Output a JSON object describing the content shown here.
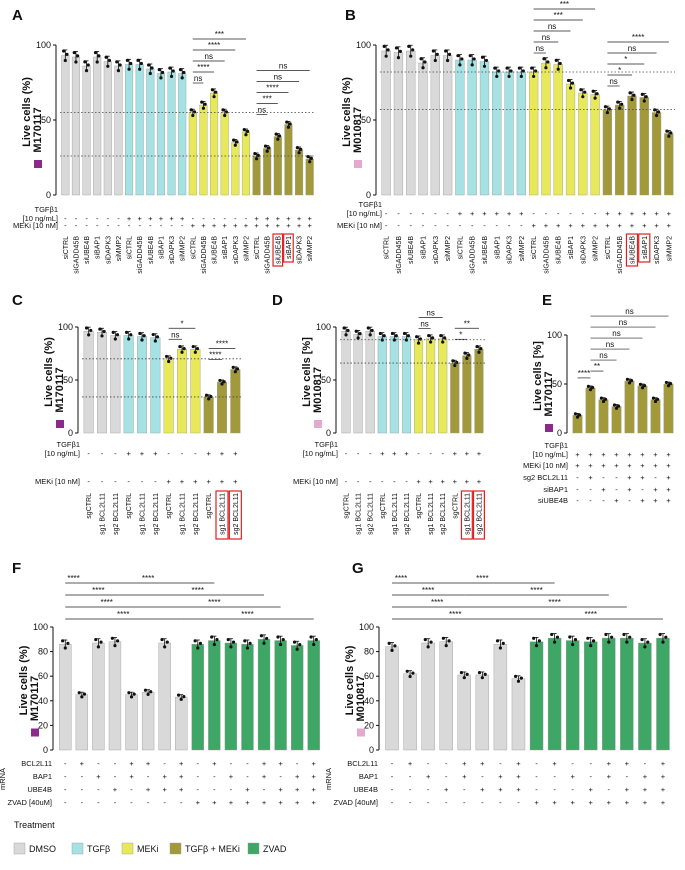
{
  "colors": {
    "DMSO": "#d9d9d9",
    "TGFb": "#a6e1e4",
    "MEKi": "#e7e85a",
    "TGFb_MEKi": "#a29a3a",
    "ZVAD": "#3fa765",
    "M170117": "#8c2a8c",
    "M010817": "#e4a9cf",
    "highlight": "#e02020"
  },
  "legend": {
    "title": "Treatment",
    "items": [
      {
        "label": "DMSO",
        "color": "#d9d9d9"
      },
      {
        "label": "TGFβ",
        "color": "#a6e1e4"
      },
      {
        "label": "MEKi",
        "color": "#e7e85a"
      },
      {
        "label": "TGFβ + MEKi",
        "color": "#a29a3a"
      },
      {
        "label": "ZVAD",
        "color": "#3fa765"
      }
    ]
  },
  "chart_data": [
    {
      "id": "A",
      "type": "bar",
      "panel_label": "A",
      "ylabel": "Live cells (%)",
      "cell_line": "M170117",
      "ylim": [
        0,
        100
      ],
      "yticks": [
        0,
        50,
        100
      ],
      "categories": [
        "siCTRL",
        "siGADD45B",
        "siUBE4B",
        "siBAP1",
        "siDAPK3",
        "siMMP2",
        "siCTRL",
        "siGADD45B",
        "siUBE4B",
        "siBAP1",
        "siDAPK3",
        "siMMP2",
        "siCTRL",
        "siGADD45B",
        "siUBE4B",
        "siBAP1",
        "siDAPK3",
        "siMMP2",
        "siCTRL",
        "siGADD45B",
        "siUBE4B",
        "siBAP1",
        "siDAPK3",
        "siMMP2"
      ],
      "values": [
        93,
        92,
        86,
        92,
        89,
        86,
        87,
        87,
        84,
        81,
        82,
        81,
        55,
        60,
        68,
        55,
        35,
        42,
        26,
        31,
        39,
        47,
        30,
        24
      ],
      "groups": [
        "DMSO",
        "DMSO",
        "DMSO",
        "DMSO",
        "DMSO",
        "DMSO",
        "TGFb",
        "TGFb",
        "TGFb",
        "TGFb",
        "TGFb",
        "TGFb",
        "MEKi",
        "MEKi",
        "MEKi",
        "MEKi",
        "MEKi",
        "MEKi",
        "TGFb_MEKi",
        "TGFb_MEKi",
        "TGFb_MEKi",
        "TGFb_MEKi",
        "TGFb_MEKi",
        "TGFb_MEKi"
      ],
      "highlight": [
        20,
        21
      ],
      "rows": [
        {
          "label": "TGFβ1",
          "label2": "[10 ng/mL]",
          "values": [
            "-",
            "-",
            "-",
            "-",
            "-",
            "-",
            "+",
            "+",
            "+",
            "+",
            "+",
            "+",
            "-",
            "-",
            "-",
            "-",
            "-",
            "-",
            "+",
            "+",
            "+",
            "+",
            "+",
            "+"
          ]
        },
        {
          "label": "MEKi [10 nM]",
          "values": [
            "-",
            "-",
            "-",
            "-",
            "-",
            "-",
            "-",
            "-",
            "-",
            "-",
            "-",
            "-",
            "+",
            "+",
            "+",
            "+",
            "+",
            "+",
            "+",
            "+",
            "+",
            "+",
            "+",
            "+"
          ]
        }
      ],
      "refs": [
        55,
        26
      ],
      "sig": [
        [
          "ns",
          12,
          13
        ],
        [
          "****",
          12,
          14
        ],
        [
          "ns",
          12,
          15
        ],
        [
          "****",
          12,
          16
        ],
        [
          "***",
          12,
          17
        ],
        [
          "ns",
          18,
          19
        ],
        [
          "***",
          18,
          20
        ],
        [
          "****",
          18,
          21
        ],
        [
          "ns",
          18,
          22
        ],
        [
          "ns",
          18,
          23
        ]
      ]
    },
    {
      "id": "B",
      "type": "bar",
      "panel_label": "B",
      "ylabel": "Live cells (%)",
      "cell_line": "M010817",
      "ylim": [
        0,
        100
      ],
      "yticks": [
        0,
        50,
        100
      ],
      "categories": [
        "siCTRL",
        "siGADD45B",
        "siUBE4B",
        "siBAP1",
        "siDAPK3",
        "siMMP2",
        "siCTRL",
        "siGADD45B",
        "siUBE4B",
        "siBAP1",
        "siDAPK3",
        "siMMP2",
        "siCTRL",
        "siGADD45B",
        "siUBE4B",
        "siBAP1",
        "siDAPK3",
        "siMMP2",
        "siCTRL",
        "siGADD45B",
        "siUBE4B",
        "siBAP1",
        "siDAPK3",
        "siMMP2"
      ],
      "values": [
        96,
        95,
        96,
        88,
        93,
        93,
        90,
        90,
        89,
        82,
        82,
        82,
        82,
        88,
        87,
        74,
        68,
        67,
        57,
        60,
        66,
        65,
        55,
        41
      ],
      "groups": [
        "DMSO",
        "DMSO",
        "DMSO",
        "DMSO",
        "DMSO",
        "DMSO",
        "TGFb",
        "TGFb",
        "TGFb",
        "TGFb",
        "TGFb",
        "TGFb",
        "MEKi",
        "MEKi",
        "MEKi",
        "MEKi",
        "MEKi",
        "MEKi",
        "TGFb_MEKi",
        "TGFb_MEKi",
        "TGFb_MEKi",
        "TGFb_MEKi",
        "TGFb_MEKi",
        "TGFb_MEKi"
      ],
      "highlight": [
        20,
        21
      ],
      "rows": [
        {
          "label": "TGFβ1",
          "label2": "[10 ng/mL]",
          "values": [
            "-",
            "-",
            "-",
            "-",
            "-",
            "-",
            "+",
            "+",
            "+",
            "+",
            "+",
            "+",
            "-",
            "-",
            "-",
            "-",
            "-",
            "-",
            "+",
            "+",
            "+",
            "+",
            "+",
            "+"
          ]
        },
        {
          "label": "MEKi [10 nM]",
          "values": [
            "-",
            "-",
            "-",
            "-",
            "-",
            "-",
            "-",
            "-",
            "-",
            "-",
            "-",
            "-",
            "+",
            "+",
            "+",
            "+",
            "+",
            "+",
            "+",
            "+",
            "+",
            "+",
            "+",
            "+"
          ]
        }
      ],
      "refs": [
        82,
        57
      ],
      "sig": [
        [
          "ns",
          12,
          13
        ],
        [
          "ns",
          12,
          14
        ],
        [
          "ns",
          12,
          15
        ],
        [
          "***",
          12,
          16
        ],
        [
          "***",
          12,
          17
        ],
        [
          "ns",
          18,
          19
        ],
        [
          "*",
          18,
          20
        ],
        [
          "*",
          18,
          21
        ],
        [
          "ns",
          18,
          22
        ],
        [
          "****",
          18,
          23
        ]
      ]
    },
    {
      "id": "C",
      "type": "bar",
      "panel_label": "C",
      "ylabel": "Live cells (%)",
      "cell_line": "M170117",
      "ylim": [
        0,
        100
      ],
      "yticks": [
        0,
        50,
        100
      ],
      "categories": [
        "sgCTRL",
        "sg1 BCL2L11",
        "sg2 BCL2L11",
        "sgCTRL",
        "sg1 BCL2L11",
        "sg2 BCL2L11",
        "sgCTRL",
        "sg1 BCL2L11",
        "sg2 BCL2L11",
        "sgCTRL",
        "sg1 BCL2L11",
        "sg2 BCL2L11"
      ],
      "values": [
        96,
        95,
        92,
        92,
        91,
        90,
        70,
        79,
        79,
        34,
        48,
        60
      ],
      "groups": [
        "DMSO",
        "DMSO",
        "DMSO",
        "TGFb",
        "TGFb",
        "TGFb",
        "MEKi",
        "MEKi",
        "MEKi",
        "TGFb_MEKi",
        "TGFb_MEKi",
        "TGFb_MEKi"
      ],
      "highlight": [
        10,
        11
      ],
      "rows": [
        {
          "label": "TGFβ1",
          "label2": "[10 ng/mL]",
          "values": [
            "-",
            "-",
            "-",
            "+",
            "+",
            "+",
            "-",
            "-",
            "-",
            "+",
            "+",
            "+"
          ]
        },
        {
          "label": "MEKi [10 nM]",
          "values": [
            "-",
            "-",
            "-",
            "-",
            "-",
            "-",
            "+",
            "+",
            "+",
            "+",
            "+",
            "+"
          ]
        }
      ],
      "refs": [
        70,
        34
      ],
      "sig": [
        [
          "ns",
          6,
          7
        ],
        [
          "*",
          6,
          8
        ],
        [
          "****",
          9,
          10
        ],
        [
          "****",
          9,
          11
        ]
      ]
    },
    {
      "id": "D",
      "type": "bar",
      "panel_label": "D",
      "ylabel": "Live cells [%]",
      "cell_line": "M010817",
      "ylim": [
        0,
        100
      ],
      "yticks": [
        0,
        50,
        100
      ],
      "categories": [
        "sgCTRL",
        "sg1 BCL2L11",
        "sg2 BCL2L11",
        "sgCTRL",
        "sg1 BCL2L11",
        "sg2 BCL2L11",
        "sgCTRL",
        "sg1 BCL2L11",
        "sg2 BCL2L11",
        "sgCTRL",
        "sg1 BCL2L11",
        "sg2 BCL2L11"
      ],
      "values": [
        96,
        93,
        96,
        91,
        91,
        91,
        88,
        89,
        89,
        66,
        73,
        79
      ],
      "groups": [
        "DMSO",
        "DMSO",
        "DMSO",
        "TGFb",
        "TGFb",
        "TGFb",
        "MEKi",
        "MEKi",
        "MEKi",
        "TGFb_MEKi",
        "TGFb_MEKi",
        "TGFb_MEKi"
      ],
      "highlight": [
        10,
        11
      ],
      "rows": [
        {
          "label": "TGFβ1",
          "label2": "[10 ng/mL]",
          "values": [
            "-",
            "-",
            "-",
            "+",
            "+",
            "+",
            "-",
            "-",
            "-",
            "+",
            "+",
            "+"
          ]
        },
        {
          "label": "MEKi [10 nM]",
          "values": [
            "-",
            "-",
            "-",
            "-",
            "-",
            "-",
            "+",
            "+",
            "+",
            "+",
            "+",
            "+"
          ]
        }
      ],
      "refs": [
        88,
        66
      ],
      "sig": [
        [
          "ns",
          6,
          7
        ],
        [
          "ns",
          6,
          8
        ],
        [
          "*",
          9,
          10
        ],
        [
          "**",
          9,
          11
        ]
      ]
    },
    {
      "id": "E",
      "type": "bar",
      "panel_label": "E",
      "ylabel": "Live cells [%]",
      "cell_line": "M170117",
      "ylim": [
        0,
        100
      ],
      "yticks": [
        0,
        50,
        100
      ],
      "categories": [
        "",
        "",
        "",
        "",
        "",
        "",
        "",
        ""
      ],
      "values": [
        18,
        46,
        34,
        27,
        53,
        48,
        34,
        50
      ],
      "groups": [
        "TGFb_MEKi",
        "TGFb_MEKi",
        "TGFb_MEKi",
        "TGFb_MEKi",
        "TGFb_MEKi",
        "TGFb_MEKi",
        "TGFb_MEKi",
        "TGFb_MEKi"
      ],
      "highlight": [],
      "rows": [
        {
          "label": "TGFβ1",
          "label2": "[10 ng/mL]",
          "values": [
            "+",
            "+",
            "+",
            "+",
            "+",
            "+",
            "+",
            "+"
          ]
        },
        {
          "label": "MEKi [10 nM]",
          "values": [
            "+",
            "+",
            "+",
            "+",
            "+",
            "+",
            "+",
            "+"
          ]
        },
        {
          "label": "sg2 BCL2L11",
          "values": [
            "-",
            "+",
            "-",
            "-",
            "+",
            "+",
            "-",
            "+"
          ]
        },
        {
          "label": "siBAP1",
          "values": [
            "-",
            "-",
            "+",
            "-",
            "+",
            "-",
            "+",
            "+"
          ]
        },
        {
          "label": "siUBE4B",
          "values": [
            "-",
            "-",
            "-",
            "+",
            "-",
            "+",
            "+",
            "+"
          ]
        }
      ],
      "refs": [],
      "sig": [
        [
          "****",
          0,
          1
        ],
        [
          "**",
          1,
          2
        ],
        [
          "ns",
          1,
          3
        ],
        [
          "ns",
          1,
          4
        ],
        [
          "ns",
          1,
          5
        ],
        [
          "ns",
          1,
          6
        ],
        [
          "ns",
          1,
          7
        ]
      ]
    },
    {
      "id": "F",
      "type": "bar",
      "panel_label": "F",
      "ylabel": "Live cells (%)",
      "cell_line": "M170117",
      "ylim": [
        0,
        100
      ],
      "yticks": [
        0,
        20,
        40,
        60,
        80,
        100
      ],
      "categories": [
        "",
        "",
        "",
        "",
        "",
        "",
        "",
        "",
        "",
        "",
        "",
        "",
        "",
        "",
        "",
        ""
      ],
      "values": [
        86,
        45,
        87,
        88,
        45,
        47,
        87,
        43,
        86,
        89,
        87,
        86,
        90,
        89,
        85,
        89
      ],
      "groups": [
        "DMSO",
        "DMSO",
        "DMSO",
        "DMSO",
        "DMSO",
        "DMSO",
        "DMSO",
        "DMSO",
        "ZVAD",
        "ZVAD",
        "ZVAD",
        "ZVAD",
        "ZVAD",
        "ZVAD",
        "ZVAD",
        "ZVAD"
      ],
      "highlight": [],
      "rows": [
        {
          "label": "BCL2L11",
          "values": [
            "-",
            "+",
            "-",
            "-",
            "+",
            "+",
            "-",
            "+",
            "-",
            "+",
            "-",
            "-",
            "+",
            "+",
            "-",
            "+"
          ]
        },
        {
          "label": "BAP1",
          "values": [
            "-",
            "-",
            "+",
            "-",
            "+",
            "-",
            "+",
            "+",
            "-",
            "-",
            "+",
            "-",
            "+",
            "-",
            "+",
            "+"
          ]
        },
        {
          "label": "UBE4B",
          "values": [
            "-",
            "-",
            "-",
            "+",
            "-",
            "+",
            "+",
            "+",
            "-",
            "-",
            "-",
            "+",
            "-",
            "+",
            "+",
            "+"
          ]
        },
        {
          "label": "ZVAD [40uM]",
          "values": [
            "-",
            "-",
            "-",
            "-",
            "-",
            "-",
            "-",
            "-",
            "+",
            "+",
            "+",
            "+",
            "+",
            "+",
            "+",
            "+"
          ]
        }
      ],
      "row_group_label": "mRNA",
      "refs": [],
      "sig": [
        [
          "****",
          0,
          1
        ],
        [
          "****",
          0,
          4
        ],
        [
          "****",
          0,
          5
        ],
        [
          "****",
          0,
          7
        ],
        [
          "****",
          1,
          9
        ],
        [
          "****",
          4,
          12
        ],
        [
          "****",
          5,
          13
        ],
        [
          "****",
          7,
          15
        ]
      ]
    },
    {
      "id": "G",
      "type": "bar",
      "panel_label": "G",
      "ylabel": "Live cells (%)",
      "cell_line": "M010817",
      "ylim": [
        0,
        100
      ],
      "yticks": [
        0,
        20,
        40,
        60,
        80,
        100
      ],
      "categories": [
        "",
        "",
        "",
        "",
        "",
        "",
        "",
        "",
        "",
        "",
        "",
        "",
        "",
        "",
        "",
        ""
      ],
      "values": [
        84,
        62,
        87,
        88,
        61,
        61,
        86,
        58,
        88,
        91,
        89,
        88,
        91,
        91,
        87,
        91
      ],
      "groups": [
        "DMSO",
        "DMSO",
        "DMSO",
        "DMSO",
        "DMSO",
        "DMSO",
        "DMSO",
        "DMSO",
        "ZVAD",
        "ZVAD",
        "ZVAD",
        "ZVAD",
        "ZVAD",
        "ZVAD",
        "ZVAD",
        "ZVAD"
      ],
      "highlight": [],
      "rows": [
        {
          "label": "BCL2L11",
          "values": [
            "-",
            "+",
            "-",
            "-",
            "+",
            "+",
            "-",
            "+",
            "-",
            "+",
            "-",
            "-",
            "+",
            "+",
            "-",
            "+"
          ]
        },
        {
          "label": "BAP1",
          "values": [
            "-",
            "-",
            "+",
            "-",
            "+",
            "-",
            "+",
            "+",
            "-",
            "-",
            "+",
            "-",
            "+",
            "-",
            "+",
            "+"
          ]
        },
        {
          "label": "UBE4B",
          "values": [
            "-",
            "-",
            "-",
            "+",
            "-",
            "+",
            "+",
            "+",
            "-",
            "-",
            "-",
            "+",
            "-",
            "+",
            "+",
            "+"
          ]
        },
        {
          "label": "ZVAD [40uM]",
          "values": [
            "-",
            "-",
            "-",
            "-",
            "-",
            "-",
            "-",
            "-",
            "+",
            "+",
            "+",
            "+",
            "+",
            "+",
            "+",
            "+"
          ]
        }
      ],
      "row_group_label": "mRNA",
      "refs": [],
      "sig": [
        [
          "****",
          0,
          1
        ],
        [
          "****",
          0,
          4
        ],
        [
          "****",
          0,
          5
        ],
        [
          "****",
          0,
          7
        ],
        [
          "****",
          1,
          9
        ],
        [
          "****",
          4,
          12
        ],
        [
          "****",
          5,
          13
        ],
        [
          "****",
          7,
          15
        ]
      ]
    }
  ]
}
